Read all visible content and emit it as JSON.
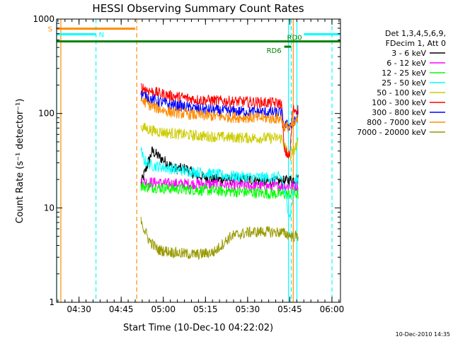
{
  "chart_data": {
    "type": "line",
    "title": "HESSI Observing Summary Count Rates",
    "xlabel": "Start Time (10-Dec-10 04:22:02)",
    "ylabel": "Count Rate (s⁻¹ detector⁻¹)",
    "ylim": [
      1,
      1000
    ],
    "yscale": "log",
    "xlim_minutes": [
      0,
      101
    ],
    "x_ticks": [
      "04:30",
      "04:45",
      "05:00",
      "05:15",
      "05:30",
      "05:45",
      "06:00"
    ],
    "y_ticks": [
      "1",
      "10",
      "100",
      "1000"
    ],
    "grid": false,
    "legend_placement": "right",
    "legend_header": [
      "Det 1,3,4,5,6,9,",
      "FDecim 1, Att 0"
    ],
    "footer_timestamp": "10-Dec-2010 14:35",
    "series": [
      {
        "name": "3 - 6 keV",
        "color": "#000000",
        "start": 30,
        "end": 86,
        "levels": [
          [
            30,
            18
          ],
          [
            34,
            40
          ],
          [
            38,
            32
          ],
          [
            42,
            26
          ],
          [
            46,
            26
          ],
          [
            50,
            22
          ],
          [
            56,
            20
          ],
          [
            62,
            20
          ],
          [
            68,
            20
          ],
          [
            74,
            19
          ],
          [
            80,
            19
          ],
          [
            84,
            20
          ],
          [
            86,
            20
          ]
        ]
      },
      {
        "name": "6 - 12 keV",
        "color": "#ff00ff",
        "start": 30,
        "end": 86,
        "levels": [
          [
            30,
            19
          ],
          [
            40,
            18
          ],
          [
            50,
            18
          ],
          [
            60,
            17.5
          ],
          [
            70,
            17
          ],
          [
            80,
            17
          ],
          [
            86,
            17
          ]
        ]
      },
      {
        "name": "12 - 25 keV",
        "color": "#00ff00",
        "start": 30,
        "end": 86,
        "levels": [
          [
            30,
            17
          ],
          [
            40,
            16
          ],
          [
            50,
            15.5
          ],
          [
            60,
            15
          ],
          [
            70,
            14.5
          ],
          [
            80,
            14
          ],
          [
            86,
            14
          ]
        ]
      },
      {
        "name": "25 - 50 keV",
        "color": "#00ffff",
        "start": 30,
        "end": 86,
        "levels": [
          [
            30,
            40
          ],
          [
            31,
            32
          ],
          [
            34,
            28
          ],
          [
            38,
            27
          ],
          [
            44,
            25
          ],
          [
            50,
            24
          ],
          [
            60,
            22
          ],
          [
            70,
            21
          ],
          [
            80,
            21
          ],
          [
            83,
            8
          ],
          [
            85,
            20
          ],
          [
            86,
            20
          ]
        ]
      },
      {
        "name": "50 - 100 keV",
        "color": "#cccc00",
        "start": 30,
        "end": 86,
        "levels": [
          [
            30,
            72
          ],
          [
            34,
            66
          ],
          [
            40,
            62
          ],
          [
            50,
            58
          ],
          [
            60,
            56
          ],
          [
            70,
            55
          ],
          [
            80,
            55
          ],
          [
            83,
            34
          ],
          [
            86,
            50
          ]
        ]
      },
      {
        "name": "100 - 300 keV",
        "color": "#ff0000",
        "start": 30,
        "end": 86,
        "levels": [
          [
            30,
            190
          ],
          [
            34,
            170
          ],
          [
            40,
            155
          ],
          [
            50,
            140
          ],
          [
            60,
            135
          ],
          [
            70,
            132
          ],
          [
            80,
            128
          ],
          [
            81,
            40
          ],
          [
            83,
            35
          ],
          [
            84,
            110
          ],
          [
            86,
            110
          ]
        ]
      },
      {
        "name": "300 - 800 keV",
        "color": "#0000ff",
        "start": 30,
        "end": 86,
        "levels": [
          [
            30,
            160
          ],
          [
            34,
            140
          ],
          [
            40,
            125
          ],
          [
            50,
            112
          ],
          [
            60,
            106
          ],
          [
            70,
            104
          ],
          [
            80,
            102
          ],
          [
            81,
            75
          ],
          [
            84,
            75
          ],
          [
            86,
            95
          ]
        ]
      },
      {
        "name": "800 - 7000 keV",
        "color": "#ff8c00",
        "start": 30,
        "end": 86,
        "levels": [
          [
            30,
            140
          ],
          [
            34,
            118
          ],
          [
            40,
            104
          ],
          [
            50,
            96
          ],
          [
            60,
            92
          ],
          [
            70,
            90
          ],
          [
            80,
            88
          ],
          [
            81,
            72
          ],
          [
            84,
            72
          ],
          [
            86,
            88
          ]
        ]
      },
      {
        "name": "7000 - 20000 keV",
        "color": "#999900",
        "start": 30,
        "end": 86,
        "levels": [
          [
            30,
            8
          ],
          [
            31,
            6
          ],
          [
            33,
            4.5
          ],
          [
            36,
            3.6
          ],
          [
            44,
            3.3
          ],
          [
            50,
            3.2
          ],
          [
            56,
            3.4
          ],
          [
            62,
            5
          ],
          [
            68,
            5.5
          ],
          [
            74,
            5.6
          ],
          [
            80,
            5.5
          ],
          [
            84,
            5
          ],
          [
            86,
            5
          ]
        ]
      }
    ],
    "flags": [
      {
        "label": "S",
        "color": "#ff8c00",
        "start": 0,
        "end": 28,
        "y": 790
      },
      {
        "label": "N",
        "color": "#00ffff",
        "start": 0,
        "end": 14,
        "y": 690
      },
      {
        "label": "",
        "color": "#00ffff",
        "start": 88,
        "end": 101,
        "y": 690
      },
      {
        "label": "RD6",
        "color": "#008000",
        "start": 81,
        "end": 83.5,
        "y": 510
      },
      {
        "label": "RD0",
        "color": "#008000",
        "start": 0,
        "end": 101,
        "y": 580
      }
    ],
    "markers": [
      {
        "x": 0,
        "color": "#00ffff",
        "style": "solid"
      },
      {
        "x": 1.5,
        "color": "#ff8c00",
        "style": "solid"
      },
      {
        "x": 14,
        "color": "#00ffff",
        "style": "dashed"
      },
      {
        "x": 28.5,
        "color": "#ff8c00",
        "style": "dashed"
      },
      {
        "x": 82.5,
        "color": "#00ffff",
        "style": "solid"
      },
      {
        "x": 83.5,
        "color": "#00ffff",
        "style": "dashed"
      },
      {
        "x": 85.5,
        "color": "#00ffff",
        "style": "solid"
      },
      {
        "x": 84.2,
        "color": "#ff8c00",
        "style": "solid"
      },
      {
        "x": 98,
        "color": "#00ffff",
        "style": "dashed"
      }
    ]
  }
}
